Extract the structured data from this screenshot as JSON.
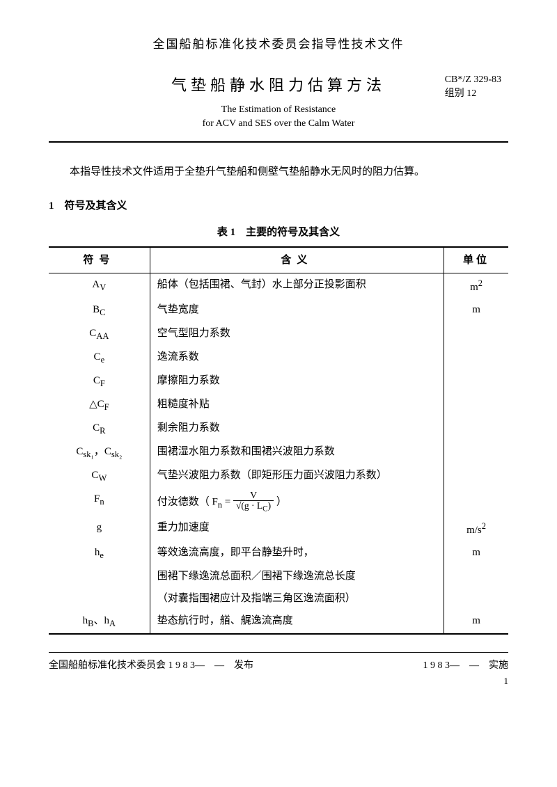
{
  "header_org": "全国船舶标准化技术委员会指导性技术文件",
  "title_cn": "气垫船静水阻力估算方法",
  "title_en_l1": "The Estimation of Resistance",
  "title_en_l2": "for ACV and SES over the Calm Water",
  "standard_code": "CB*/Z 329-83",
  "group_label": "组别 12",
  "intro": "本指导性技术文件适用于全垫升气垫船和侧壁气垫船静水无风时的阻力估算。",
  "section1_heading": "1　符号及其含义",
  "table_caption": "表 1　主要的符号及其含义",
  "columns": {
    "symbol": "符号",
    "meaning": "含义",
    "unit": "单位"
  },
  "rows": [
    {
      "symbol_html": "A<sub>V</sub>",
      "meaning": "船体（包括围裙、气封）水上部分正投影面积",
      "unit_html": "m<sup>2</sup>"
    },
    {
      "symbol_html": "B<sub>C</sub>",
      "meaning": "气垫宽度",
      "unit_html": "m"
    },
    {
      "symbol_html": "C<sub>AA</sub>",
      "meaning": "空气型阻力系数",
      "unit_html": ""
    },
    {
      "symbol_html": "C<sub>e</sub>",
      "meaning": "逸流系数",
      "unit_html": ""
    },
    {
      "symbol_html": "C<sub>F</sub>",
      "meaning": "摩擦阻力系数",
      "unit_html": ""
    },
    {
      "symbol_html": "△C<sub>F</sub>",
      "meaning": "粗糙度补贴",
      "unit_html": ""
    },
    {
      "symbol_html": "C<sub>R</sub>",
      "meaning": "剩余阻力系数",
      "unit_html": ""
    },
    {
      "symbol_html": "C<sub>sk₁</sub>，C<sub>sk₂</sub>",
      "meaning": "围裙湿水阻力系数和围裙兴波阻力系数",
      "unit_html": ""
    },
    {
      "symbol_html": "C<sub>W</sub>",
      "meaning": "气垫兴波阻力系数（即矩形压力面兴波阻力系数）",
      "unit_html": ""
    },
    {
      "symbol_html": "F<sub>n</sub>",
      "meaning_html": "付汝德数（ F<sub>n</sub> = <span class=\"frac\"><span class=\"top\">V</span><span class=\"bot\">√(g · L<sub>C</sub>)</span></span> ）",
      "unit_html": ""
    },
    {
      "symbol_html": "g",
      "meaning": "重力加速度",
      "unit_html": "m/s<sup>2</sup>"
    },
    {
      "symbol_html": "h<sub>e</sub>",
      "meaning": "等效逸流高度，即平台静垫升时，",
      "unit_html": "m"
    },
    {
      "symbol_html": "",
      "meaning": "围裙下缘逸流总面积／围裙下缘逸流总长度",
      "unit_html": ""
    },
    {
      "symbol_html": "",
      "meaning": "（对囊指围裙应计及指端三角区逸流面积）",
      "unit_html": ""
    },
    {
      "symbol_html": "h<sub>B</sub>、h<sub>A</sub>",
      "meaning": "垫态航行时，艏、艉逸流高度",
      "unit_html": "m"
    }
  ],
  "footer_left": "全国船舶标准化技术委员会 1 9 8 3—　—　发布",
  "footer_right": "1 9 8 3—　—　实施",
  "page_number": "1"
}
